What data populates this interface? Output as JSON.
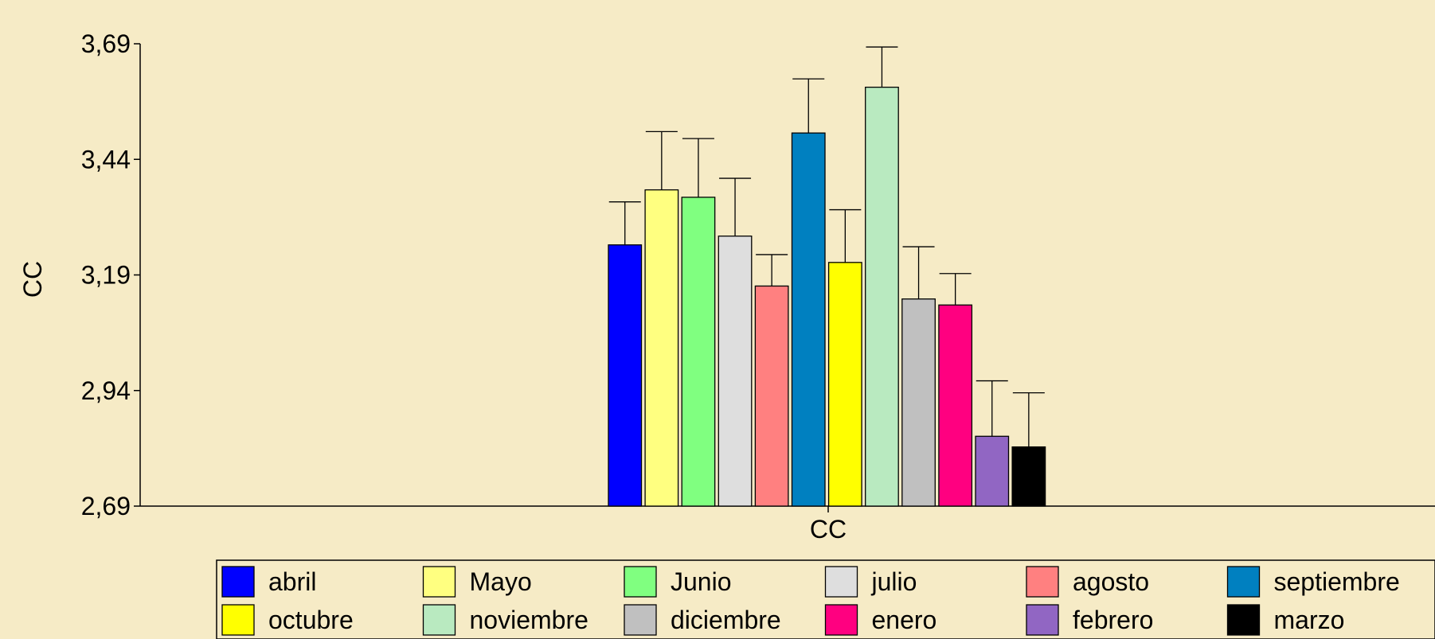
{
  "chart_data": {
    "type": "bar",
    "title": "",
    "xlabel": "CC",
    "ylabel": "CC",
    "categories": [
      "CC"
    ],
    "ylim": [
      2.69,
      3.69
    ],
    "yticks": [
      2.69,
      2.94,
      3.19,
      3.44,
      3.69
    ],
    "ytick_labels": [
      "2,69",
      "2,94",
      "3,19",
      "3,44",
      "3,69"
    ],
    "grid": false,
    "legend_position": "bottom",
    "error_bars": true,
    "series": [
      {
        "name": "abril",
        "color": "#0000ff",
        "values": [
          3.255
        ],
        "error": [
          0.093
        ]
      },
      {
        "name": "Mayo",
        "color": "#ffff80",
        "values": [
          3.374
        ],
        "error": [
          0.126
        ]
      },
      {
        "name": "Junio",
        "color": "#80ff80",
        "values": [
          3.358
        ],
        "error": [
          0.127
        ]
      },
      {
        "name": "julio",
        "color": "#dedede",
        "values": [
          3.274
        ],
        "error": [
          0.125
        ]
      },
      {
        "name": "agosto",
        "color": "#ff8080",
        "values": [
          3.166
        ],
        "error": [
          0.068
        ]
      },
      {
        "name": "septiembre",
        "color": "#0080c0",
        "values": [
          3.497
        ],
        "error": [
          0.117
        ]
      },
      {
        "name": "octubre",
        "color": "#ffff00",
        "values": [
          3.217
        ],
        "error": [
          0.114
        ]
      },
      {
        "name": "noviembre",
        "color": "#b9eac0",
        "values": [
          3.596
        ],
        "error": [
          0.087
        ]
      },
      {
        "name": "diciembre",
        "color": "#c0c0c0",
        "values": [
          3.138
        ],
        "error": [
          0.113
        ]
      },
      {
        "name": "enero",
        "color": "#ff0080",
        "values": [
          3.125
        ],
        "error": [
          0.068
        ]
      },
      {
        "name": "febrero",
        "color": "#9166c3",
        "values": [
          2.841
        ],
        "error": [
          0.12
        ]
      },
      {
        "name": "marzo",
        "color": "#000000",
        "values": [
          2.818
        ],
        "error": [
          0.117
        ]
      }
    ]
  }
}
